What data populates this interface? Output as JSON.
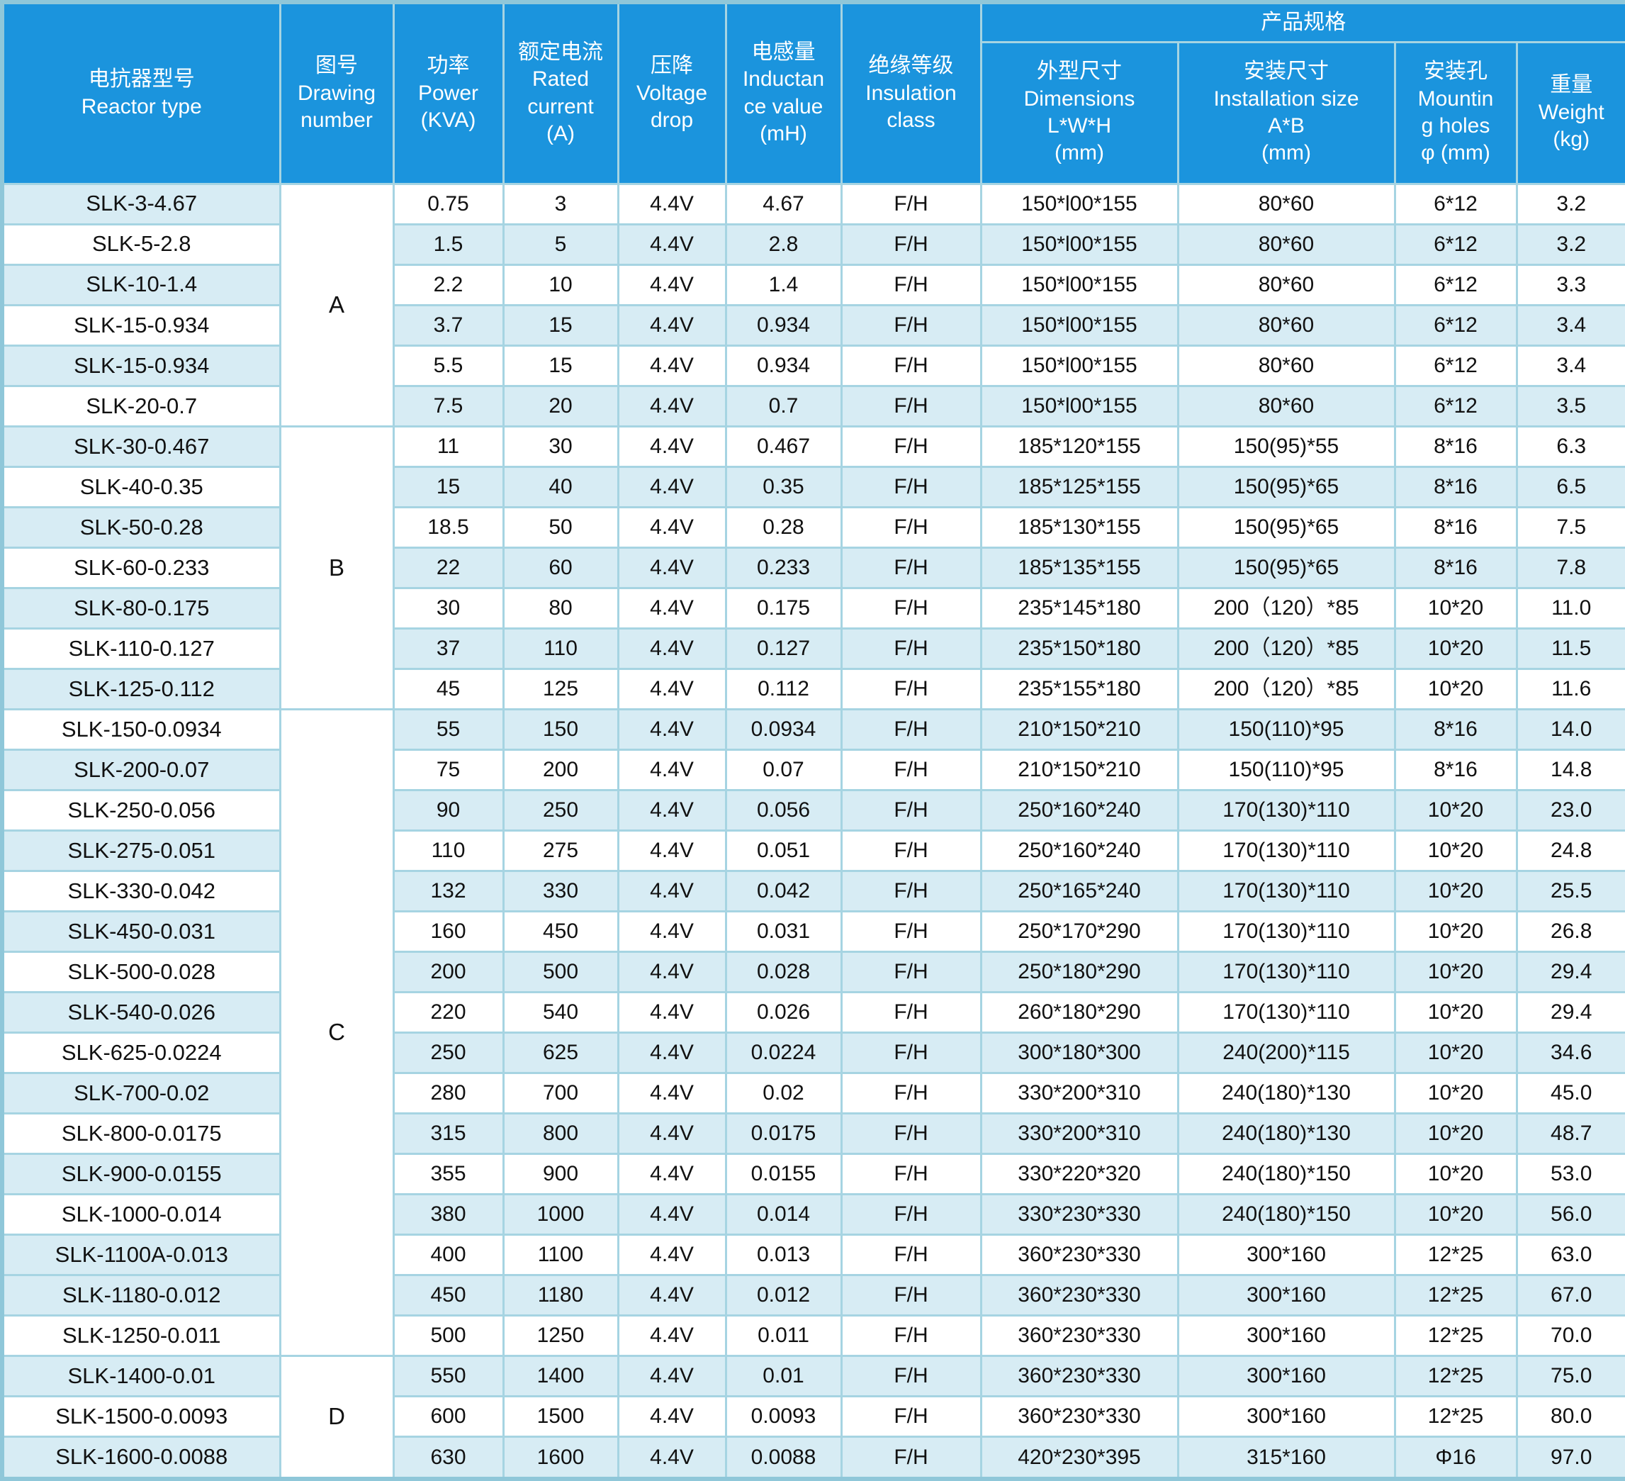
{
  "colors": {
    "header_bg": "#1b94dd",
    "header_text": "#ffffff",
    "row_alt_bg": "#d7ecf4",
    "row_bg": "#ffffff",
    "grid_border": "#a6d4e2",
    "outer_border": "#8fc7d9",
    "text": "#111111"
  },
  "product_spec": {
    "title": "产品规格"
  },
  "columns": [
    {
      "label": "电抗器型号\nReactor type"
    },
    {
      "label": "图号\nDrawing\nnumber"
    },
    {
      "label": "功率\nPower\n(KVA)"
    },
    {
      "label": "额定电流\nRated\ncurrent\n(A)"
    },
    {
      "label": "压降\nVoltage\ndrop"
    },
    {
      "label": "电感量\nInductan\nce value\n(mH)"
    },
    {
      "label": "绝缘等级\nInsulation\nclass"
    },
    {
      "label": "外型尺寸\nDimensions\nL*W*H\n(mm)"
    },
    {
      "label": "安装尺寸\nInstallation size\nA*B\n(mm)"
    },
    {
      "label": "安装孔\nMountin\ng holes\nφ (mm)"
    },
    {
      "label": "重量\nWeight\n(kg)"
    }
  ],
  "groups": [
    {
      "drawing_number": "A",
      "rows": [
        {
          "type": "SLK-3-4.67",
          "power": "0.75",
          "current": "3",
          "drop": "4.4V",
          "inductance": "4.67",
          "insulation": "F/H",
          "dimensions": "150*l00*155",
          "installation": "80*60",
          "mounting": "6*12",
          "weight": "3.2"
        },
        {
          "type": "SLK-5-2.8",
          "power": "1.5",
          "current": "5",
          "drop": "4.4V",
          "inductance": "2.8",
          "insulation": "F/H",
          "dimensions": "150*l00*155",
          "installation": "80*60",
          "mounting": "6*12",
          "weight": "3.2"
        },
        {
          "type": "SLK-10-1.4",
          "power": "2.2",
          "current": "10",
          "drop": "4.4V",
          "inductance": "1.4",
          "insulation": "F/H",
          "dimensions": "150*l00*155",
          "installation": "80*60",
          "mounting": "6*12",
          "weight": "3.3"
        },
        {
          "type": "SLK-15-0.934",
          "power": "3.7",
          "current": "15",
          "drop": "4.4V",
          "inductance": "0.934",
          "insulation": "F/H",
          "dimensions": "150*l00*155",
          "installation": "80*60",
          "mounting": "6*12",
          "weight": "3.4"
        },
        {
          "type": "SLK-15-0.934",
          "power": "5.5",
          "current": "15",
          "drop": "4.4V",
          "inductance": "0.934",
          "insulation": "F/H",
          "dimensions": "150*l00*155",
          "installation": "80*60",
          "mounting": "6*12",
          "weight": "3.4"
        },
        {
          "type": "SLK-20-0.7",
          "power": "7.5",
          "current": "20",
          "drop": "4.4V",
          "inductance": "0.7",
          "insulation": "F/H",
          "dimensions": "150*l00*155",
          "installation": "80*60",
          "mounting": "6*12",
          "weight": "3.5"
        }
      ]
    },
    {
      "drawing_number": "B",
      "rows": [
        {
          "type": "SLK-30-0.467",
          "power": "11",
          "current": "30",
          "drop": "4.4V",
          "inductance": "0.467",
          "insulation": "F/H",
          "dimensions": "185*120*155",
          "installation": "150(95)*55",
          "mounting": "8*16",
          "weight": "6.3"
        },
        {
          "type": "SLK-40-0.35",
          "power": "15",
          "current": "40",
          "drop": "4.4V",
          "inductance": "0.35",
          "insulation": "F/H",
          "dimensions": "185*125*155",
          "installation": "150(95)*65",
          "mounting": "8*16",
          "weight": "6.5"
        },
        {
          "type": "SLK-50-0.28",
          "power": "18.5",
          "current": "50",
          "drop": "4.4V",
          "inductance": "0.28",
          "insulation": "F/H",
          "dimensions": "185*130*155",
          "installation": "150(95)*65",
          "mounting": "8*16",
          "weight": "7.5"
        },
        {
          "type": "SLK-60-0.233",
          "power": "22",
          "current": "60",
          "drop": "4.4V",
          "inductance": "0.233",
          "insulation": "F/H",
          "dimensions": "185*135*155",
          "installation": "150(95)*65",
          "mounting": "8*16",
          "weight": "7.8"
        },
        {
          "type": "SLK-80-0.175",
          "power": "30",
          "current": "80",
          "drop": "4.4V",
          "inductance": "0.175",
          "insulation": "F/H",
          "dimensions": "235*145*180",
          "installation": "200（120）*85",
          "mounting": "10*20",
          "weight": "11.0"
        },
        {
          "type": "SLK-110-0.127",
          "power": "37",
          "current": "110",
          "drop": "4.4V",
          "inductance": "0.127",
          "insulation": "F/H",
          "dimensions": "235*150*180",
          "installation": "200（120）*85",
          "mounting": "10*20",
          "weight": "11.5"
        },
        {
          "type": "SLK-125-0.112",
          "power": "45",
          "current": "125",
          "drop": "4.4V",
          "inductance": "0.112",
          "insulation": "F/H",
          "dimensions": "235*155*180",
          "installation": "200（120）*85",
          "mounting": "10*20",
          "weight": "11.6"
        }
      ]
    },
    {
      "drawing_number": "C",
      "rows": [
        {
          "type": "SLK-150-0.0934",
          "power": "55",
          "current": "150",
          "drop": "4.4V",
          "inductance": "0.0934",
          "insulation": "F/H",
          "dimensions": "210*150*210",
          "installation": "150(110)*95",
          "mounting": "8*16",
          "weight": "14.0"
        },
        {
          "type": "SLK-200-0.07",
          "power": "75",
          "current": "200",
          "drop": "4.4V",
          "inductance": "0.07",
          "insulation": "F/H",
          "dimensions": "210*150*210",
          "installation": "150(110)*95",
          "mounting": "8*16",
          "weight": "14.8"
        },
        {
          "type": "SLK-250-0.056",
          "power": "90",
          "current": "250",
          "drop": "4.4V",
          "inductance": "0.056",
          "insulation": "F/H",
          "dimensions": "250*160*240",
          "installation": "170(130)*110",
          "mounting": "10*20",
          "weight": "23.0"
        },
        {
          "type": "SLK-275-0.051",
          "power": "110",
          "current": "275",
          "drop": "4.4V",
          "inductance": "0.051",
          "insulation": "F/H",
          "dimensions": "250*160*240",
          "installation": "170(130)*110",
          "mounting": "10*20",
          "weight": "24.8"
        },
        {
          "type": "SLK-330-0.042",
          "power": "132",
          "current": "330",
          "drop": "4.4V",
          "inductance": "0.042",
          "insulation": "F/H",
          "dimensions": "250*165*240",
          "installation": "170(130)*110",
          "mounting": "10*20",
          "weight": "25.5"
        },
        {
          "type": "SLK-450-0.031",
          "power": "160",
          "current": "450",
          "drop": "4.4V",
          "inductance": "0.031",
          "insulation": "F/H",
          "dimensions": "250*170*290",
          "installation": "170(130)*110",
          "mounting": "10*20",
          "weight": "26.8"
        },
        {
          "type": "SLK-500-0.028",
          "power": "200",
          "current": "500",
          "drop": "4.4V",
          "inductance": "0.028",
          "insulation": "F/H",
          "dimensions": "250*180*290",
          "installation": "170(130)*110",
          "mounting": "10*20",
          "weight": "29.4"
        },
        {
          "type": "SLK-540-0.026",
          "power": "220",
          "current": "540",
          "drop": "4.4V",
          "inductance": "0.026",
          "insulation": "F/H",
          "dimensions": "260*180*290",
          "installation": "170(130)*110",
          "mounting": "10*20",
          "weight": "29.4"
        },
        {
          "type": "SLK-625-0.0224",
          "power": "250",
          "current": "625",
          "drop": "4.4V",
          "inductance": "0.0224",
          "insulation": "F/H",
          "dimensions": "300*180*300",
          "installation": "240(200)*115",
          "mounting": "10*20",
          "weight": "34.6"
        },
        {
          "type": "SLK-700-0.02",
          "power": "280",
          "current": "700",
          "drop": "4.4V",
          "inductance": "0.02",
          "insulation": "F/H",
          "dimensions": "330*200*310",
          "installation": "240(180)*130",
          "mounting": "10*20",
          "weight": "45.0"
        },
        {
          "type": "SLK-800-0.0175",
          "power": "315",
          "current": "800",
          "drop": "4.4V",
          "inductance": "0.0175",
          "insulation": "F/H",
          "dimensions": "330*200*310",
          "installation": "240(180)*130",
          "mounting": "10*20",
          "weight": "48.7"
        },
        {
          "type": "SLK-900-0.0155",
          "power": "355",
          "current": "900",
          "drop": "4.4V",
          "inductance": "0.0155",
          "insulation": "F/H",
          "dimensions": "330*220*320",
          "installation": "240(180)*150",
          "mounting": "10*20",
          "weight": "53.0"
        },
        {
          "type": "SLK-1000-0.014",
          "power": "380",
          "current": "1000",
          "drop": "4.4V",
          "inductance": "0.014",
          "insulation": "F/H",
          "dimensions": "330*230*330",
          "installation": "240(180)*150",
          "mounting": "10*20",
          "weight": "56.0"
        },
        {
          "type": "SLK-1100A-0.013",
          "power": "400",
          "current": "1100",
          "drop": "4.4V",
          "inductance": "0.013",
          "insulation": "F/H",
          "dimensions": "360*230*330",
          "installation": "300*160",
          "mounting": "12*25",
          "weight": "63.0"
        },
        {
          "type": "SLK-1180-0.012",
          "power": "450",
          "current": "1180",
          "drop": "4.4V",
          "inductance": "0.012",
          "insulation": "F/H",
          "dimensions": "360*230*330",
          "installation": "300*160",
          "mounting": "12*25",
          "weight": "67.0"
        },
        {
          "type": "SLK-1250-0.011",
          "power": "500",
          "current": "1250",
          "drop": "4.4V",
          "inductance": "0.011",
          "insulation": "F/H",
          "dimensions": "360*230*330",
          "installation": "300*160",
          "mounting": "12*25",
          "weight": "70.0"
        }
      ]
    },
    {
      "drawing_number": "D",
      "rows": [
        {
          "type": "SLK-1400-0.01",
          "power": "550",
          "current": "1400",
          "drop": "4.4V",
          "inductance": "0.01",
          "insulation": "F/H",
          "dimensions": "360*230*330",
          "installation": "300*160",
          "mounting": "12*25",
          "weight": "75.0"
        },
        {
          "type": "SLK-1500-0.0093",
          "power": "600",
          "current": "1500",
          "drop": "4.4V",
          "inductance": "0.0093",
          "insulation": "F/H",
          "dimensions": "360*230*330",
          "installation": "300*160",
          "mounting": "12*25",
          "weight": "80.0"
        },
        {
          "type": "SLK-1600-0.0088",
          "power": "630",
          "current": "1600",
          "drop": "4.4V",
          "inductance": "0.0088",
          "insulation": "F/H",
          "dimensions": "420*230*395",
          "installation": "315*160",
          "mounting": "Φ16",
          "weight": "97.0"
        }
      ]
    }
  ]
}
